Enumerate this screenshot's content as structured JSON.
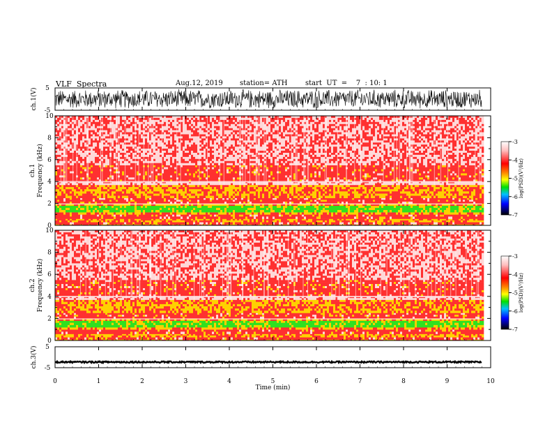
{
  "header": {
    "title": "VLF  Spectra",
    "date": "Aug.12, 2019",
    "station": "station= ATH",
    "start": "start  UT  =    7  : 10: 1"
  },
  "colors": {
    "spec_bg": "#f2f2f2",
    "levels": [
      "#ffd8d8",
      "#ff3030",
      "#ffd000",
      "#30e020",
      "#0000ff",
      "#000000"
    ]
  },
  "chart_data": [
    {
      "type": "line",
      "name": "ch1-waveform",
      "ylabel": "ch.1(V)",
      "ylim": [
        -5,
        5
      ],
      "yticks": [
        "5",
        "-5"
      ],
      "x_range_min": [
        0,
        9.8
      ],
      "amplitude_V": 4.6
    },
    {
      "type": "heatmap",
      "name": "ch1-spectrogram",
      "ylabel_top": "ch.1",
      "ylabel": "Frequency  (kHz)",
      "ylim": [
        0,
        10
      ],
      "yticks": [
        "0",
        "2",
        "4",
        "6",
        "8",
        "10"
      ],
      "x_range_min": [
        0,
        9.8
      ],
      "bands": [
        {
          "from": 0.0,
          "to": 0.1,
          "level": "yellow"
        },
        {
          "from": 0.1,
          "to": 0.3,
          "level": "red"
        },
        {
          "from": 0.3,
          "to": 0.6,
          "level": "yellow"
        },
        {
          "from": 0.6,
          "to": 1.0,
          "level": "red"
        },
        {
          "from": 1.0,
          "to": 1.2,
          "level": "yellow"
        },
        {
          "from": 1.2,
          "to": 1.8,
          "level": "green"
        },
        {
          "from": 1.8,
          "to": 2.0,
          "level": "yellow"
        },
        {
          "from": 2.0,
          "to": 2.5,
          "level": "red"
        },
        {
          "from": 2.5,
          "to": 3.7,
          "level": "yellow-red"
        },
        {
          "from": 3.7,
          "to": 4.0,
          "level": "pink"
        },
        {
          "from": 4.0,
          "to": 5.5,
          "level": "red"
        },
        {
          "from": 5.5,
          "to": 10.0,
          "level": "pink-red"
        }
      ],
      "colorbar": {
        "label": "log(PSD)(V²/Hz)",
        "ticks": [
          "-3",
          "-4",
          "-5",
          "-6",
          "-7"
        ],
        "range": [
          -7,
          -3
        ]
      }
    },
    {
      "type": "heatmap",
      "name": "ch2-spectrogram",
      "ylabel_top": "ch.2",
      "ylabel": "Frequency  (kHz)",
      "ylim": [
        0,
        10
      ],
      "yticks": [
        "0",
        "2",
        "4",
        "6",
        "8",
        "10"
      ],
      "x_range_min": [
        0,
        9.8
      ],
      "bands": [
        {
          "from": 0.0,
          "to": 0.1,
          "level": "yellow"
        },
        {
          "from": 0.1,
          "to": 0.3,
          "level": "red"
        },
        {
          "from": 0.3,
          "to": 0.6,
          "level": "yellow"
        },
        {
          "from": 0.6,
          "to": 1.0,
          "level": "red"
        },
        {
          "from": 1.0,
          "to": 1.2,
          "level": "yellow"
        },
        {
          "from": 1.2,
          "to": 1.8,
          "level": "green"
        },
        {
          "from": 1.8,
          "to": 2.0,
          "level": "yellow"
        },
        {
          "from": 2.0,
          "to": 2.5,
          "level": "red"
        },
        {
          "from": 2.5,
          "to": 3.7,
          "level": "yellow-red"
        },
        {
          "from": 3.7,
          "to": 4.0,
          "level": "pink"
        },
        {
          "from": 4.0,
          "to": 5.5,
          "level": "red"
        },
        {
          "from": 5.5,
          "to": 10.0,
          "level": "pink-red"
        }
      ],
      "colorbar": {
        "label": "log(PSD)(V²/Hz)",
        "ticks": [
          "-3",
          "-4",
          "-5",
          "-6",
          "-7"
        ],
        "range": [
          -7,
          -3
        ]
      }
    },
    {
      "type": "line",
      "name": "ch3-waveform",
      "ylabel": "ch.3(V)",
      "ylim": [
        -5,
        5
      ],
      "yticks": [
        "5",
        "-5"
      ],
      "x_range_min": [
        0,
        9.8
      ],
      "level_V": -2.3
    }
  ],
  "xaxis": {
    "label": "Time  (min)",
    "ticks": [
      "0",
      "1",
      "2",
      "3",
      "4",
      "5",
      "6",
      "7",
      "8",
      "9",
      "10"
    ],
    "range": [
      0,
      10
    ]
  }
}
